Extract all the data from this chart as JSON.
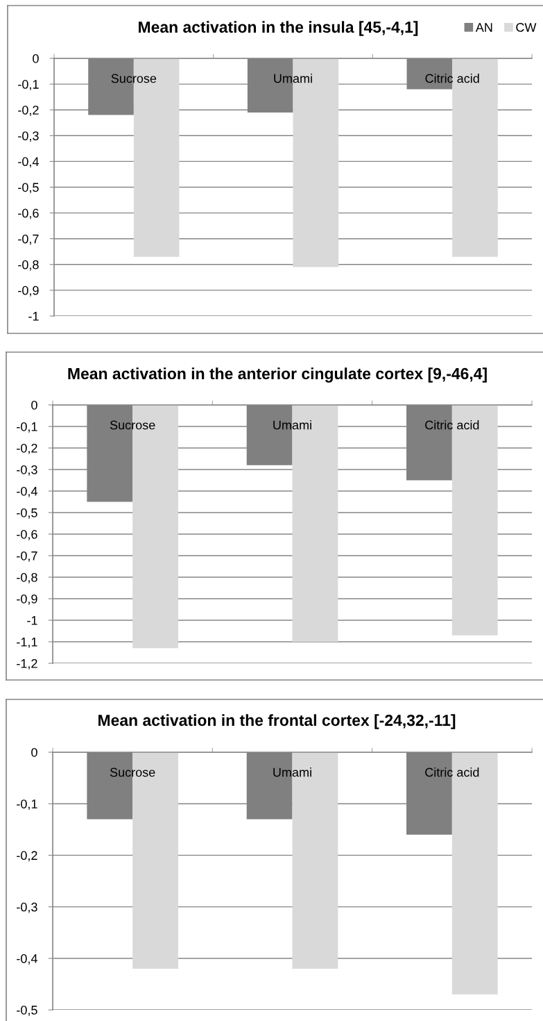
{
  "chart_data": [
    {
      "type": "bar",
      "title": "Mean activation in the insula [45,-4,1]",
      "categories": [
        "Sucrose",
        "Umami",
        "Citric acid"
      ],
      "series": [
        {
          "name": "AN",
          "color": "#808080",
          "values": [
            -0.22,
            -0.21,
            -0.12
          ]
        },
        {
          "name": "CW",
          "color": "#d9d9d9",
          "values": [
            -0.77,
            -0.81,
            -0.77
          ]
        }
      ],
      "ylim": [
        -1,
        0
      ],
      "yticks": [
        0,
        {
          "value": -0.1,
          "label": "-0,1"
        },
        {
          "value": -0.2,
          "label": "-0,2"
        },
        {
          "value": -0.3,
          "label": "-0,3"
        },
        {
          "value": -0.4,
          "label": "-0,4"
        },
        {
          "value": -0.5,
          "label": "-0,5"
        },
        {
          "value": -0.6,
          "label": "-0,6"
        },
        {
          "value": -0.7,
          "label": "-0,7"
        },
        {
          "value": -0.8,
          "label": "-0,8"
        },
        {
          "value": -0.9,
          "label": "-0,9"
        },
        -1
      ],
      "grid": "y",
      "legend": "top right"
    },
    {
      "type": "bar",
      "title": "Mean activation in the anterior cingulate cortex [9,-46,4]",
      "categories": [
        "Sucrose",
        "Umami",
        "Citric acid"
      ],
      "series": [
        {
          "color": "#808080",
          "values": [
            -0.45,
            -0.28,
            -0.35
          ]
        },
        {
          "color": "#d9d9d9",
          "values": [
            -1.13,
            -1.1,
            -1.07
          ]
        }
      ],
      "ylim": [
        -1.2,
        0
      ],
      "yticks": [
        0,
        {
          "value": -0.1,
          "label": "-0,1"
        },
        {
          "value": -0.2,
          "label": "-0,2"
        },
        {
          "value": -0.3,
          "label": "-0,3"
        },
        {
          "value": -0.4,
          "label": "-0,4"
        },
        {
          "value": -0.5,
          "label": "-0,5"
        },
        {
          "value": -0.6,
          "label": "-0,6"
        },
        {
          "value": -0.7,
          "label": "-0,7"
        },
        {
          "value": -0.8,
          "label": "-0,8"
        },
        {
          "value": -0.9,
          "label": "-0,9"
        },
        -1,
        {
          "value": -1.1,
          "label": "-1,1"
        },
        {
          "value": -1.2,
          "label": "-1,2"
        }
      ],
      "grid": "y"
    },
    {
      "type": "bar",
      "title": "Mean activation in the frontal cortex [-24,32,-11]",
      "categories": [
        "Sucrose",
        "Umami",
        "Citric acid"
      ],
      "series": [
        {
          "color": "#808080",
          "values": [
            -0.13,
            -0.13,
            -0.16
          ]
        },
        {
          "color": "#d9d9d9",
          "values": [
            -0.42,
            -0.42,
            -0.47
          ]
        }
      ],
      "ylim": [
        -0.5,
        0
      ],
      "yticks": [
        0,
        {
          "value": -0.1,
          "label": "-0,1"
        },
        {
          "value": -0.2,
          "label": "-0,2"
        },
        {
          "value": -0.3,
          "label": "-0,3"
        },
        {
          "value": -0.4,
          "label": "-0,4"
        },
        {
          "value": -0.5,
          "label": "-0,5"
        }
      ],
      "grid": "y"
    }
  ]
}
